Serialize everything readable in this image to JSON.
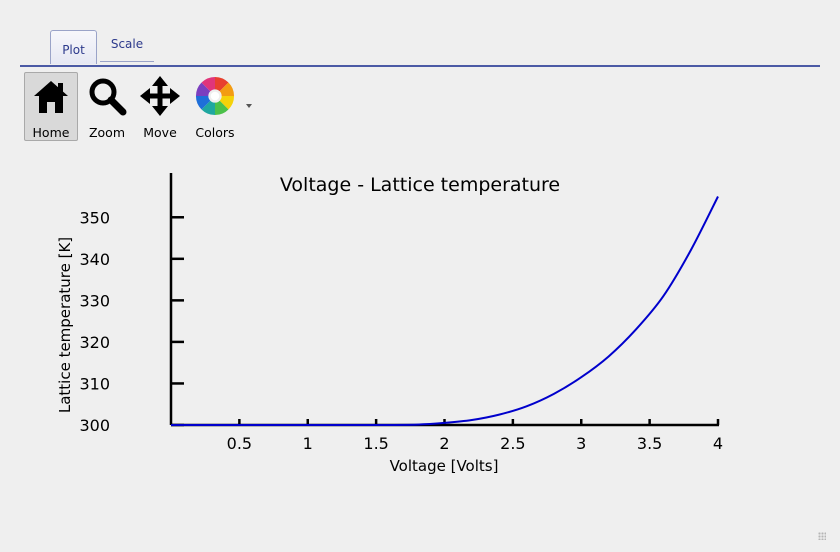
{
  "tabs": [
    {
      "label": "Plot",
      "active": true
    },
    {
      "label": "Scale",
      "active": false
    }
  ],
  "toolbar": {
    "home": {
      "label": "Home",
      "icon": "home-icon"
    },
    "zoom": {
      "label": "Zoom",
      "icon": "magnifier-icon"
    },
    "move": {
      "label": "Move",
      "icon": "move-arrows-icon"
    },
    "colors": {
      "label": "Colors",
      "icon": "color-wheel-icon"
    }
  },
  "colors": {
    "accent": "#4b5aa5",
    "tab_text": "#2d3a8c",
    "series": "#0000cc"
  },
  "chart_data": {
    "type": "line",
    "title": "Voltage - Lattice temperature",
    "xlabel": "Voltage [Volts]",
    "ylabel": "Lattice temperature [K]",
    "xlim": [
      0,
      4
    ],
    "ylim": [
      300,
      355
    ],
    "xticks": [
      "0.5",
      "1",
      "1.5",
      "2",
      "2.5",
      "3",
      "3.5",
      "4"
    ],
    "yticks": [
      "300",
      "310",
      "320",
      "330",
      "340",
      "350"
    ],
    "grid": false,
    "series": [
      {
        "x": [
          0,
          0.5,
          1,
          1.5,
          1.8,
          2,
          2.2,
          2.4,
          2.6,
          2.8,
          3,
          3.2,
          3.4,
          3.6,
          3.8,
          4
        ],
        "y": [
          300,
          300,
          300,
          300,
          300.1,
          300.5,
          301.2,
          302.5,
          304.5,
          307.5,
          311.5,
          316.5,
          323,
          331,
          342,
          355
        ]
      }
    ]
  }
}
